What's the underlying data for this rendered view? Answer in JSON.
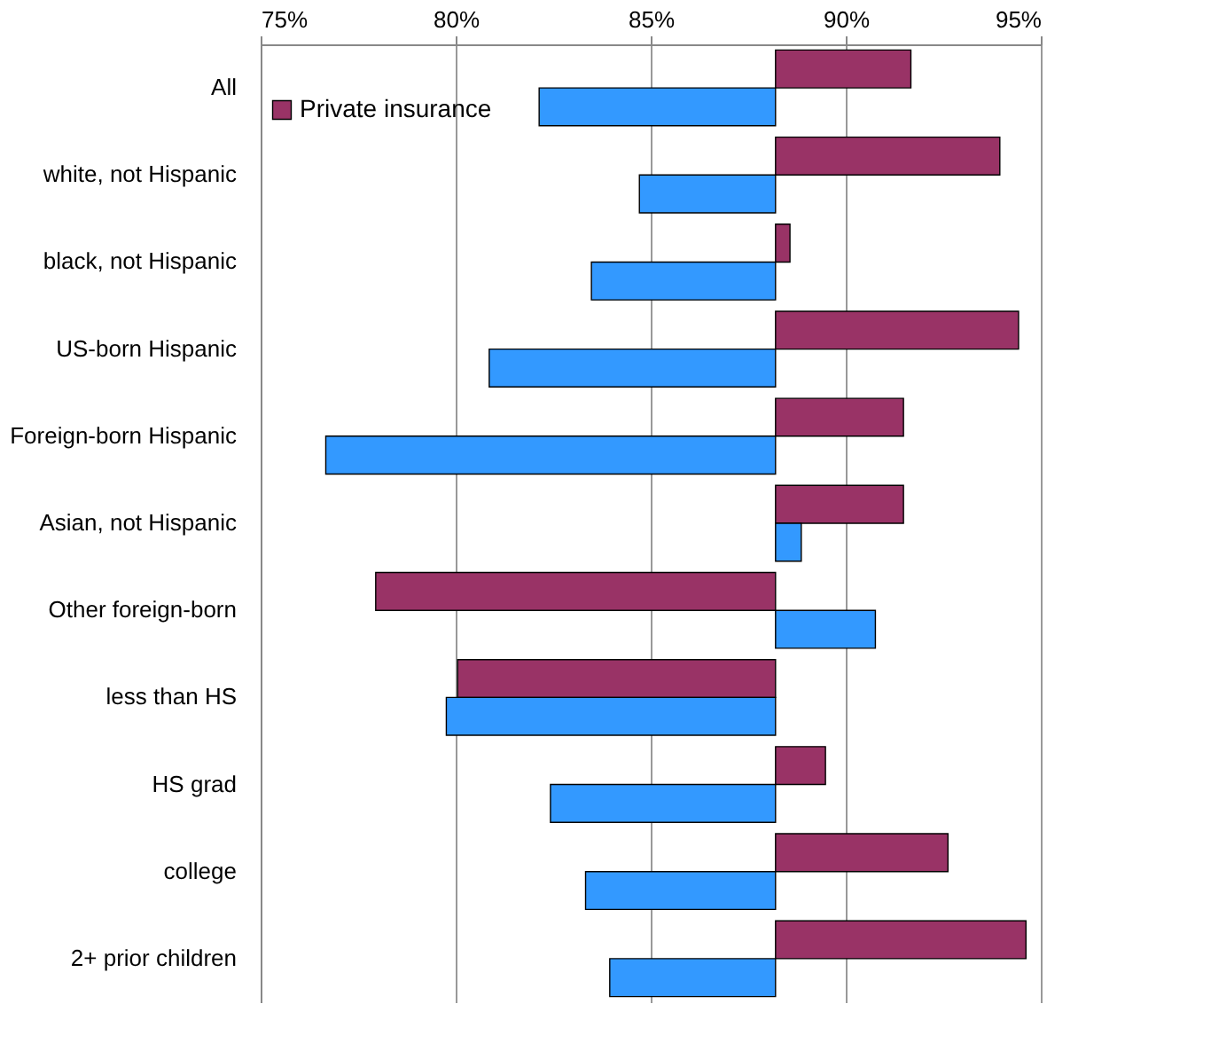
{
  "chart_data": {
    "type": "bar",
    "orientation": "horizontal",
    "categories": [
      "All",
      "white, not Hispanic",
      "black, not Hispanic",
      "US-born Hispanic",
      "Foreign-born Hispanic",
      "Asian, not Hispanic",
      "Other foreign-born",
      "less than HS",
      "HS grad",
      "college",
      "2+ prior children"
    ],
    "series": [
      {
        "name": "Private insurance",
        "color": "#993366",
        "base": [
          88.2,
          88.2,
          88.2,
          88.2,
          88.2,
          88.2,
          88.2,
          88.2,
          88.2,
          88.2,
          88.2
        ],
        "values": [
          3.47,
          5.75,
          0.37,
          6.23,
          3.28,
          3.28,
          -10.25,
          -8.15,
          1.28,
          4.42,
          6.42
        ]
      },
      {
        "color": "#3399ff",
        "base": [
          88.2,
          88.2,
          88.2,
          88.2,
          88.2,
          88.2,
          88.2,
          88.2,
          88.2,
          88.2,
          88.2
        ],
        "values": [
          -6.06,
          -3.49,
          -4.72,
          -7.34,
          -11.53,
          0.66,
          2.56,
          -8.44,
          -5.77,
          -4.87,
          -4.25
        ]
      }
    ],
    "xlim": [
      75,
      95
    ],
    "xticks": [
      {
        "value": 75,
        "label": "75%"
      },
      {
        "value": 80,
        "label": "80%"
      },
      {
        "value": 85,
        "label": "85%"
      },
      {
        "value": 90,
        "label": "90%"
      },
      {
        "value": 95,
        "label": "95%"
      }
    ],
    "grid": "x",
    "legend": "top left"
  }
}
